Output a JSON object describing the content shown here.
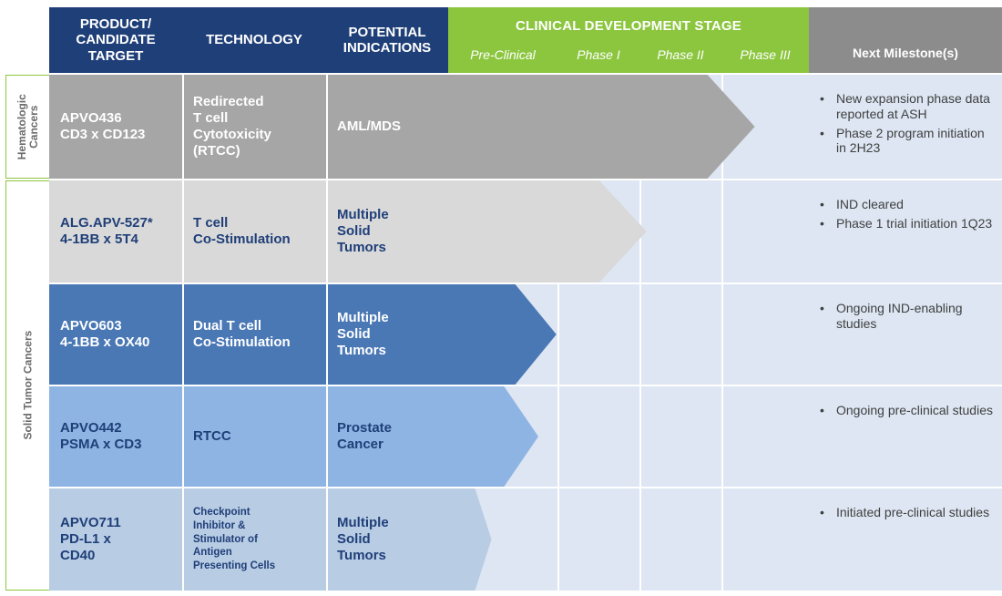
{
  "header": {
    "product": [
      "PRODUCT/",
      "CANDIDATE",
      "TARGET"
    ],
    "technology": "TECHNOLOGY",
    "indications": [
      "POTENTIAL",
      "INDICATIONS"
    ],
    "stage_title": "CLINICAL DEVELOPMENT STAGE",
    "phases": [
      "Pre-Clinical",
      "Phase I",
      "Phase II",
      "Phase III"
    ],
    "milestone": "Next Milestone(s)"
  },
  "groups": {
    "hematologic": [
      "Hematologic",
      "Cancers"
    ],
    "solid": "Solid Tumor Cancers"
  },
  "rows": [
    {
      "product": [
        "APVO436",
        "CD3 x CD123"
      ],
      "technology": [
        "Redirected",
        "T cell",
        "Cytotoxicity",
        "(RTCC)"
      ],
      "indication": [
        "AML/MDS"
      ],
      "stage_fraction": 0.85,
      "milestones": [
        "New expansion phase data reported at ASH",
        "Phase 2 program initiation in 2H23"
      ],
      "colors": {
        "main": "#a6a6a6",
        "text_dark": "#1f3f78",
        "text": "#1f3f78",
        "arrow": "#a6a6a6"
      }
    },
    {
      "product": [
        "ALG.APV-527*",
        "4-1BB x 5T4"
      ],
      "technology": [
        "T cell",
        "Co-Stimulation"
      ],
      "indication": [
        "Multiple",
        "Solid",
        "Tumors"
      ],
      "stage_fraction": 0.55,
      "milestones": [
        "IND cleared",
        "Phase 1 trial initiation 1Q23"
      ],
      "colors": {
        "main": "#d9d9d9",
        "text": "#1f3f78",
        "arrow": "#d9d9d9"
      }
    },
    {
      "product": [
        "APVO603",
        "4-1BB x OX40"
      ],
      "technology": [
        "Dual T cell",
        "Co-Stimulation"
      ],
      "indication": [
        "Multiple",
        "Solid",
        "Tumors"
      ],
      "stage_fraction": 0.3,
      "milestones": [
        "Ongoing IND-enabling studies"
      ],
      "colors": {
        "main": "#4a78b5",
        "text": "#1f3f78",
        "arrow": "#4a78b5"
      }
    },
    {
      "product": [
        "APVO442",
        "PSMA x CD3"
      ],
      "technology": [
        "RTCC"
      ],
      "indication": [
        "Prostate",
        "Cancer"
      ],
      "stage_fraction": 0.25,
      "milestones": [
        "Ongoing pre-clinical studies"
      ],
      "colors": {
        "main": "#8eb4e3",
        "text": "#1f3f78",
        "arrow": "#8eb4e3"
      }
    },
    {
      "product": [
        "APVO711",
        "PD-L1 x",
        "CD40"
      ],
      "technology": [
        "Checkpoint",
        "Inhibitor &",
        "Stimulator of",
        "Antigen",
        "Presenting Cells"
      ],
      "indication": [
        "Multiple",
        "Solid",
        "Tumors"
      ],
      "stage_fraction": 0.12,
      "milestones": [
        "Initiated pre-clinical studies"
      ],
      "colors": {
        "main": "#b8cce4",
        "text": "#1f3f78",
        "arrow": "#b8cce4"
      }
    }
  ]
}
